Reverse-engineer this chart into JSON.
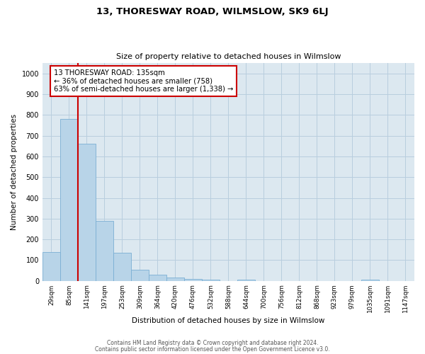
{
  "title": "13, THORESWAY ROAD, WILMSLOW, SK9 6LJ",
  "subtitle": "Size of property relative to detached houses in Wilmslow",
  "xlabel": "Distribution of detached houses by size in Wilmslow",
  "ylabel": "Number of detached properties",
  "bar_values": [
    140,
    780,
    660,
    290,
    135,
    55,
    30,
    15,
    10,
    5,
    0,
    5,
    0,
    0,
    0,
    0,
    0,
    0,
    5,
    0,
    0
  ],
  "bin_labels": [
    "29sqm",
    "85sqm",
    "141sqm",
    "197sqm",
    "253sqm",
    "309sqm",
    "364sqm",
    "420sqm",
    "476sqm",
    "532sqm",
    "588sqm",
    "644sqm",
    "700sqm",
    "756sqm",
    "812sqm",
    "868sqm",
    "923sqm",
    "979sqm",
    "1035sqm",
    "1091sqm",
    "1147sqm"
  ],
  "bar_color": "#b8d4e8",
  "bar_edge_color": "#7bafd4",
  "property_line_x": 1.5,
  "property_line_color": "#cc0000",
  "annotation_box_color": "#cc0000",
  "annotation_title": "13 THORESWAY ROAD: 135sqm",
  "annotation_line1": "← 36% of detached houses are smaller (758)",
  "annotation_line2": "63% of semi-detached houses are larger (1,338) →",
  "ylim": [
    0,
    1050
  ],
  "yticks": [
    0,
    100,
    200,
    300,
    400,
    500,
    600,
    700,
    800,
    900,
    1000
  ],
  "footer_line1": "Contains HM Land Registry data © Crown copyright and database right 2024.",
  "footer_line2": "Contains public sector information licensed under the Open Government Licence v3.0.",
  "background_color": "#ffffff",
  "plot_bg_color": "#dce8f0",
  "grid_color": "#b8cede"
}
